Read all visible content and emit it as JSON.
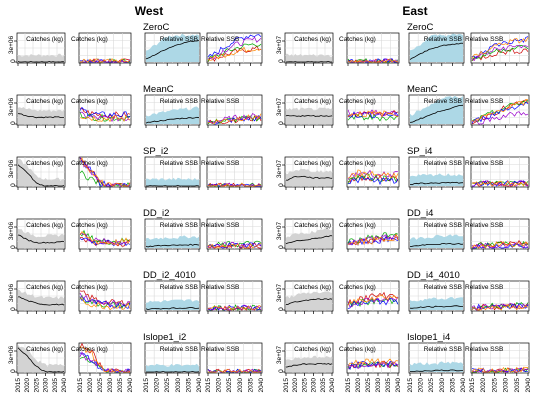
{
  "region_titles": [
    "West",
    "East"
  ],
  "panel_labels": {
    "catches": "Catches (kg)",
    "ssb": "Relative SSB"
  },
  "x_tick_labels": [
    "2015",
    "2020",
    "2025",
    "2030",
    "2035",
    "2040"
  ],
  "colors": {
    "envelope_grey": "#d3d3d3",
    "envelope_blue": "#add8e6",
    "median": "#000000",
    "grid": "#d9d9d9",
    "iter_red": "#cc0000",
    "iter_green": "#00aa00",
    "iter_blue": "#0000ff",
    "iter_purple": "#9900cc",
    "iter_orange": "#ff8800"
  },
  "chart_data": {
    "type": "line",
    "description_layout": "6 management procedures x 2 regions x 4 panels",
    "x": [
      2015,
      2020,
      2025,
      2030,
      2035,
      2040
    ],
    "regions": [
      {
        "name": "West",
        "rows": [
          {
            "mp": "ZeroC",
            "ytick_label": "3e+06",
            "c_med": [
              0,
              0,
              0,
              0,
              0,
              0
            ],
            "s_med": [
              0.1,
              0.3,
              0.5,
              0.65,
              0.75,
              0.8
            ]
          },
          {
            "mp": "MeanC",
            "ytick_label": "3e+06",
            "c_med": [
              0.4,
              0.3,
              0.25,
              0.25,
              0.25,
              0.25
            ],
            "s_med": [
              0.05,
              0.1,
              0.15,
              0.2,
              0.22,
              0.25
            ]
          },
          {
            "mp": "SP_i2",
            "ytick_label": "3e+06",
            "c_med": [
              0.8,
              0.5,
              0.1,
              0,
              0,
              0
            ],
            "s_med": [
              0,
              0,
              0,
              0,
              0,
              0
            ]
          },
          {
            "mp": "DD_i2",
            "ytick_label": "3e+06",
            "c_med": [
              0.5,
              0.3,
              0.2,
              0.2,
              0.2,
              0.25
            ],
            "s_med": [
              0.05,
              0.08,
              0.1,
              0.1,
              0.12,
              0.12
            ]
          },
          {
            "mp": "DD_i2_4010",
            "ytick_label": "3e+06",
            "c_med": [
              0.5,
              0.35,
              0.25,
              0.2,
              0.2,
              0.2
            ],
            "s_med": [
              0.03,
              0.05,
              0.06,
              0.07,
              0.08,
              0.08
            ]
          },
          {
            "mp": "Islope1_i2",
            "ytick_label": "3e+06",
            "c_med": [
              0.9,
              0.6,
              0.2,
              0,
              0,
              0
            ],
            "s_med": [
              0,
              0,
              0,
              0,
              0,
              0
            ]
          }
        ]
      },
      {
        "name": "East",
        "rows": [
          {
            "mp": "ZeroC",
            "ytick_label": "3e+07",
            "c_med": [
              0,
              0,
              0,
              0,
              0,
              0
            ],
            "s_med": [
              0.1,
              0.3,
              0.5,
              0.6,
              0.65,
              0.7
            ]
          },
          {
            "mp": "MeanC",
            "ytick_label": "3e+07",
            "c_med": [
              0.3,
              0.3,
              0.3,
              0.3,
              0.3,
              0.3
            ],
            "s_med": [
              0.05,
              0.2,
              0.35,
              0.5,
              0.6,
              0.7
            ]
          },
          {
            "mp": "SP_i4",
            "ytick_label": "3e+07",
            "c_med": [
              0.2,
              0.35,
              0.35,
              0.3,
              0.3,
              0.3
            ],
            "s_med": [
              0.05,
              0.1,
              0.1,
              0.12,
              0.12,
              0.12
            ]
          },
          {
            "mp": "DD_i4",
            "ytick_label": "3e+07",
            "c_med": [
              0.15,
              0.25,
              0.3,
              0.35,
              0.4,
              0.45
            ],
            "s_med": [
              0.05,
              0.1,
              0.12,
              0.15,
              0.15,
              0.15
            ]
          },
          {
            "mp": "DD_i4_4010",
            "ytick_label": "3e+07",
            "c_med": [
              0.2,
              0.3,
              0.35,
              0.4,
              0.4,
              0.4
            ],
            "s_med": [
              0.05,
              0.1,
              0.12,
              0.12,
              0.14,
              0.15
            ]
          },
          {
            "mp": "Islope1_i4",
            "ytick_label": "3e+07",
            "c_med": [
              0.2,
              0.25,
              0.3,
              0.3,
              0.3,
              0.3
            ],
            "s_med": [
              0.02,
              0.04,
              0.05,
              0.06,
              0.06,
              0.06
            ]
          }
        ]
      }
    ]
  }
}
